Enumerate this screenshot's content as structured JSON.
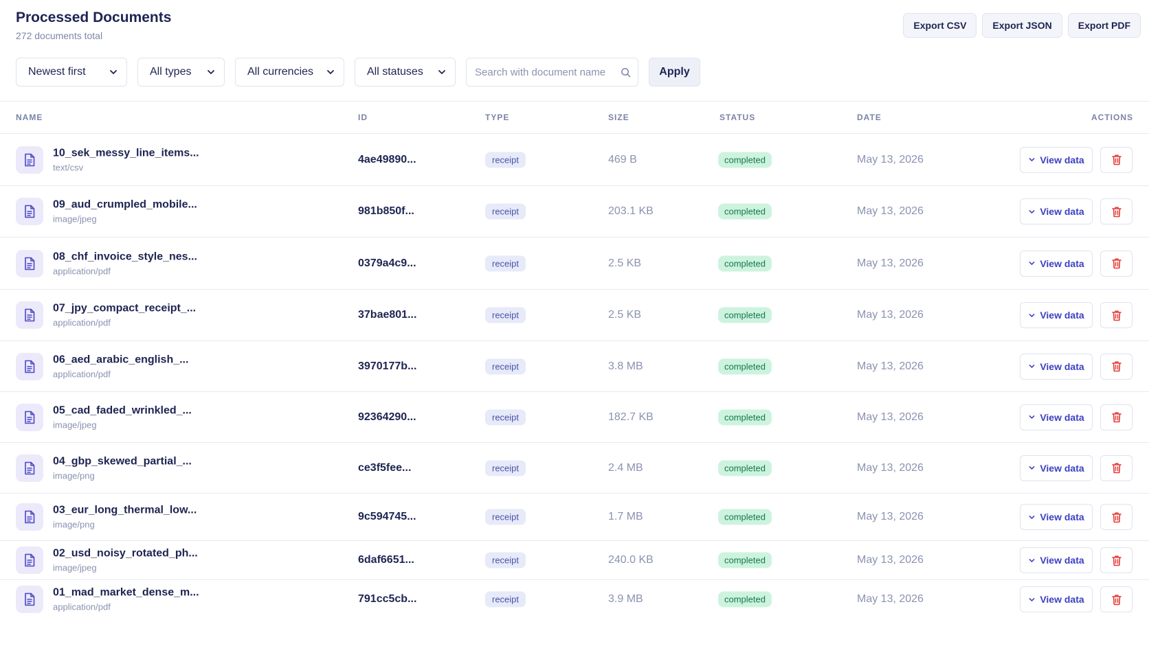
{
  "header": {
    "title": "Processed Documents",
    "subtitle": "272 documents total"
  },
  "exports": [
    "Export CSV",
    "Export JSON",
    "Export PDF"
  ],
  "filters": {
    "sort": "Newest first",
    "type": "All types",
    "currency": "All currencies",
    "status": "All statuses",
    "search_placeholder": "Search with document name",
    "apply_label": "Apply"
  },
  "columns": {
    "name": "NAME",
    "id": "ID",
    "type": "TYPE",
    "size": "SIZE",
    "status": "STATUS",
    "date": "DATE",
    "actions": "ACTIONS"
  },
  "icons": {
    "file": "file-text-icon",
    "chevron": "chevron-down-icon",
    "search": "search-icon",
    "delete": "trash-icon"
  },
  "colors": {
    "accent": "#3a3fc2",
    "status_completed_bg": "#cdf3df",
    "status_completed_text": "#15784a",
    "delete": "#e53935"
  },
  "action_labels": {
    "view": "View data"
  },
  "rows": [
    {
      "name": "10_sek_messy_line_items...",
      "mime": "text/csv",
      "id": "4ae49890...",
      "type": "receipt",
      "size": "469 B",
      "status": "completed",
      "date": "May 13, 2026"
    },
    {
      "name": "09_aud_crumpled_mobile...",
      "mime": "image/jpeg",
      "id": "981b850f...",
      "type": "receipt",
      "size": "203.1 KB",
      "status": "completed",
      "date": "May 13, 2026"
    },
    {
      "name": "08_chf_invoice_style_nes...",
      "mime": "application/pdf",
      "id": "0379a4c9...",
      "type": "receipt",
      "size": "2.5 KB",
      "status": "completed",
      "date": "May 13, 2026"
    },
    {
      "name": "07_jpy_compact_receipt_...",
      "mime": "application/pdf",
      "id": "37bae801...",
      "type": "receipt",
      "size": "2.5 KB",
      "status": "completed",
      "date": "May 13, 2026"
    },
    {
      "name": "06_aed_arabic_english_...",
      "mime": "application/pdf",
      "id": "3970177b...",
      "type": "receipt",
      "size": "3.8 MB",
      "status": "completed",
      "date": "May 13, 2026"
    },
    {
      "name": "05_cad_faded_wrinkled_...",
      "mime": "image/jpeg",
      "id": "92364290...",
      "type": "receipt",
      "size": "182.7 KB",
      "status": "completed",
      "date": "May 13, 2026"
    },
    {
      "name": "04_gbp_skewed_partial_...",
      "mime": "image/png",
      "id": "ce3f5fee...",
      "type": "receipt",
      "size": "2.4 MB",
      "status": "completed",
      "date": "May 13, 2026"
    },
    {
      "name": "03_eur_long_thermal_low...",
      "mime": "image/png",
      "id": "9c594745...",
      "type": "receipt",
      "size": "1.7 MB",
      "status": "completed",
      "date": "May 13, 2026"
    },
    {
      "name": "02_usd_noisy_rotated_ph...",
      "mime": "image/jpeg",
      "id": "6daf6651...",
      "type": "receipt",
      "size": "240.0 KB",
      "status": "completed",
      "date": "May 13, 2026"
    },
    {
      "name": "01_mad_market_dense_m...",
      "mime": "application/pdf",
      "id": "791cc5cb...",
      "type": "receipt",
      "size": "3.9 MB",
      "status": "completed",
      "date": "May 13, 2026"
    }
  ]
}
